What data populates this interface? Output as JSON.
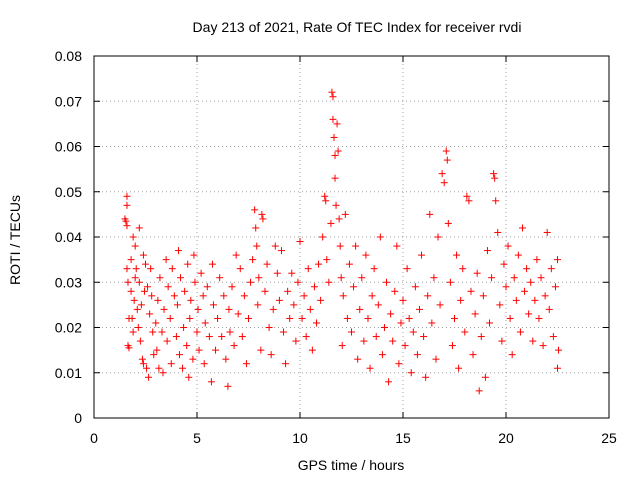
{
  "chart_data": {
    "type": "scatter",
    "title": "Day 213 of 2021, Rate Of TEC Index for receiver rvdi",
    "xlabel": "GPS time / hours",
    "ylabel": "ROTI / TECUs",
    "xlim": [
      0,
      25
    ],
    "ylim": [
      0,
      0.08
    ],
    "x_ticks": [
      "0",
      "5",
      "10",
      "15",
      "20",
      "25"
    ],
    "y_ticks": [
      "0",
      "0.01",
      "0.02",
      "0.03",
      "0.04",
      "0.05",
      "0.06",
      "0.07",
      "0.08"
    ],
    "grid": true,
    "marker": "+",
    "color": "#ff0000",
    "series": [
      {
        "points": [
          [
            1.5,
            0.044
          ],
          [
            1.55,
            0.0435
          ],
          [
            1.6,
            0.049
          ],
          [
            1.6,
            0.047
          ],
          [
            1.6,
            0.0425
          ],
          [
            1.6,
            0.033
          ],
          [
            1.65,
            0.03
          ],
          [
            1.65,
            0.016
          ],
          [
            1.7,
            0.022
          ],
          [
            1.7,
            0.0155
          ],
          [
            1.8,
            0.035
          ],
          [
            1.8,
            0.028
          ],
          [
            1.85,
            0.022
          ],
          [
            1.9,
            0.04
          ],
          [
            1.9,
            0.019
          ],
          [
            1.95,
            0.026
          ],
          [
            2.0,
            0.038
          ],
          [
            2.0,
            0.031
          ],
          [
            2.05,
            0.033
          ],
          [
            2.1,
            0.024
          ],
          [
            2.15,
            0.02
          ],
          [
            2.2,
            0.042
          ],
          [
            2.2,
            0.03
          ],
          [
            2.25,
            0.017
          ],
          [
            2.3,
            0.025
          ],
          [
            2.35,
            0.013
          ],
          [
            2.4,
            0.036
          ],
          [
            2.4,
            0.012
          ],
          [
            2.45,
            0.028
          ],
          [
            2.5,
            0.034
          ],
          [
            2.55,
            0.011
          ],
          [
            2.6,
            0.029
          ],
          [
            2.65,
            0.009
          ],
          [
            2.7,
            0.023
          ],
          [
            2.75,
            0.033
          ],
          [
            2.8,
            0.027
          ],
          [
            2.85,
            0.019
          ],
          [
            2.9,
            0.014
          ],
          [
            3.0,
            0.021
          ],
          [
            3.05,
            0.015
          ],
          [
            3.1,
            0.026
          ],
          [
            3.15,
            0.011
          ],
          [
            3.2,
            0.031
          ],
          [
            3.3,
            0.019
          ],
          [
            3.35,
            0.01
          ],
          [
            3.4,
            0.024
          ],
          [
            3.5,
            0.035
          ],
          [
            3.55,
            0.017
          ],
          [
            3.6,
            0.029
          ],
          [
            3.7,
            0.022
          ],
          [
            3.75,
            0.012
          ],
          [
            3.8,
            0.033
          ],
          [
            3.9,
            0.027
          ],
          [
            4.0,
            0.018
          ],
          [
            4.05,
            0.025
          ],
          [
            4.1,
            0.037
          ],
          [
            4.15,
            0.014
          ],
          [
            4.2,
            0.031
          ],
          [
            4.3,
            0.011
          ],
          [
            4.35,
            0.02
          ],
          [
            4.4,
            0.028
          ],
          [
            4.5,
            0.016
          ],
          [
            4.55,
            0.034
          ],
          [
            4.6,
            0.009
          ],
          [
            4.65,
            0.022
          ],
          [
            4.7,
            0.026
          ],
          [
            4.8,
            0.013
          ],
          [
            4.85,
            0.036
          ],
          [
            4.9,
            0.03
          ],
          [
            5.0,
            0.019
          ],
          [
            5.05,
            0.024
          ],
          [
            5.1,
            0.015
          ],
          [
            5.2,
            0.032
          ],
          [
            5.3,
            0.027
          ],
          [
            5.35,
            0.012
          ],
          [
            5.4,
            0.021
          ],
          [
            5.5,
            0.029
          ],
          [
            5.6,
            0.018
          ],
          [
            5.7,
            0.008
          ],
          [
            5.75,
            0.034
          ],
          [
            5.8,
            0.025
          ],
          [
            5.9,
            0.015
          ],
          [
            6.0,
            0.022
          ],
          [
            6.1,
            0.031
          ],
          [
            6.2,
            0.018
          ],
          [
            6.3,
            0.027
          ],
          [
            6.4,
            0.013
          ],
          [
            6.5,
            0.007
          ],
          [
            6.55,
            0.024
          ],
          [
            6.6,
            0.019
          ],
          [
            6.7,
            0.029
          ],
          [
            6.8,
            0.016
          ],
          [
            6.9,
            0.036
          ],
          [
            7.0,
            0.023
          ],
          [
            7.1,
            0.033
          ],
          [
            7.2,
            0.018
          ],
          [
            7.3,
            0.027
          ],
          [
            7.4,
            0.012
          ],
          [
            7.5,
            0.022
          ],
          [
            7.6,
            0.03
          ],
          [
            7.7,
            0.035
          ],
          [
            7.8,
            0.046
          ],
          [
            7.85,
            0.042
          ],
          [
            7.9,
            0.038
          ],
          [
            7.95,
            0.025
          ],
          [
            8.0,
            0.031
          ],
          [
            8.1,
            0.015
          ],
          [
            8.15,
            0.045
          ],
          [
            8.2,
            0.044
          ],
          [
            8.3,
            0.028
          ],
          [
            8.4,
            0.034
          ],
          [
            8.5,
            0.02
          ],
          [
            8.6,
            0.014
          ],
          [
            8.7,
            0.024
          ],
          [
            8.8,
            0.038
          ],
          [
            8.9,
            0.032
          ],
          [
            9.0,
            0.026
          ],
          [
            9.1,
            0.037
          ],
          [
            9.2,
            0.019
          ],
          [
            9.3,
            0.012
          ],
          [
            9.4,
            0.028
          ],
          [
            9.5,
            0.022
          ],
          [
            9.6,
            0.032
          ],
          [
            9.7,
            0.025
          ],
          [
            9.8,
            0.017
          ],
          [
            9.9,
            0.03
          ],
          [
            10.0,
            0.039
          ],
          [
            10.1,
            0.022
          ],
          [
            10.2,
            0.027
          ],
          [
            10.3,
            0.018
          ],
          [
            10.4,
            0.033
          ],
          [
            10.5,
            0.024
          ],
          [
            10.6,
            0.015
          ],
          [
            10.7,
            0.029
          ],
          [
            10.8,
            0.021
          ],
          [
            10.9,
            0.034
          ],
          [
            11.0,
            0.026
          ],
          [
            11.1,
            0.04
          ],
          [
            11.2,
            0.049
          ],
          [
            11.25,
            0.048
          ],
          [
            11.3,
            0.035
          ],
          [
            11.4,
            0.03
          ],
          [
            11.5,
            0.043
          ],
          [
            11.55,
            0.072
          ],
          [
            11.6,
            0.071
          ],
          [
            11.6,
            0.066
          ],
          [
            11.65,
            0.062
          ],
          [
            11.7,
            0.058
          ],
          [
            11.7,
            0.053
          ],
          [
            11.75,
            0.047
          ],
          [
            11.8,
            0.065
          ],
          [
            11.85,
            0.059
          ],
          [
            11.9,
            0.044
          ],
          [
            11.95,
            0.038
          ],
          [
            12.0,
            0.031
          ],
          [
            12.05,
            0.016
          ],
          [
            12.1,
            0.027
          ],
          [
            12.2,
            0.045
          ],
          [
            12.3,
            0.022
          ],
          [
            12.4,
            0.034
          ],
          [
            12.5,
            0.019
          ],
          [
            12.6,
            0.029
          ],
          [
            12.7,
            0.038
          ],
          [
            12.8,
            0.013
          ],
          [
            12.9,
            0.024
          ],
          [
            13.0,
            0.031
          ],
          [
            13.1,
            0.017
          ],
          [
            13.2,
            0.036
          ],
          [
            13.3,
            0.022
          ],
          [
            13.4,
            0.011
          ],
          [
            13.5,
            0.027
          ],
          [
            13.6,
            0.033
          ],
          [
            13.7,
            0.018
          ],
          [
            13.8,
            0.025
          ],
          [
            13.9,
            0.04
          ],
          [
            14.0,
            0.014
          ],
          [
            14.1,
            0.02
          ],
          [
            14.2,
            0.03
          ],
          [
            14.3,
            0.008
          ],
          [
            14.4,
            0.023
          ],
          [
            14.5,
            0.017
          ],
          [
            14.6,
            0.028
          ],
          [
            14.7,
            0.038
          ],
          [
            14.8,
            0.012
          ],
          [
            14.9,
            0.021
          ],
          [
            15.0,
            0.026
          ],
          [
            15.1,
            0.016
          ],
          [
            15.2,
            0.033
          ],
          [
            15.3,
            0.022
          ],
          [
            15.4,
            0.01
          ],
          [
            15.5,
            0.019
          ],
          [
            15.6,
            0.029
          ],
          [
            15.7,
            0.014
          ],
          [
            15.8,
            0.024
          ],
          [
            15.9,
            0.036
          ],
          [
            16.0,
            0.018
          ],
          [
            16.1,
            0.009
          ],
          [
            16.2,
            0.027
          ],
          [
            16.3,
            0.045
          ],
          [
            16.4,
            0.021
          ],
          [
            16.5,
            0.031
          ],
          [
            16.6,
            0.013
          ],
          [
            16.7,
            0.04
          ],
          [
            16.8,
            0.025
          ],
          [
            16.9,
            0.054
          ],
          [
            17.0,
            0.052
          ],
          [
            17.1,
            0.059
          ],
          [
            17.15,
            0.057
          ],
          [
            17.2,
            0.043
          ],
          [
            17.3,
            0.03
          ],
          [
            17.4,
            0.016
          ],
          [
            17.5,
            0.022
          ],
          [
            17.6,
            0.036
          ],
          [
            17.7,
            0.011
          ],
          [
            17.8,
            0.026
          ],
          [
            17.9,
            0.033
          ],
          [
            18.0,
            0.019
          ],
          [
            18.1,
            0.049
          ],
          [
            18.2,
            0.048
          ],
          [
            18.3,
            0.028
          ],
          [
            18.4,
            0.014
          ],
          [
            18.5,
            0.023
          ],
          [
            18.6,
            0.032
          ],
          [
            18.7,
            0.006
          ],
          [
            18.8,
            0.018
          ],
          [
            18.9,
            0.027
          ],
          [
            19.0,
            0.009
          ],
          [
            19.1,
            0.037
          ],
          [
            19.2,
            0.021
          ],
          [
            19.3,
            0.031
          ],
          [
            19.4,
            0.054
          ],
          [
            19.45,
            0.053
          ],
          [
            19.5,
            0.048
          ],
          [
            19.6,
            0.041
          ],
          [
            19.7,
            0.025
          ],
          [
            19.8,
            0.017
          ],
          [
            19.9,
            0.034
          ],
          [
            20.0,
            0.029
          ],
          [
            20.1,
            0.038
          ],
          [
            20.2,
            0.022
          ],
          [
            20.3,
            0.014
          ],
          [
            20.4,
            0.031
          ],
          [
            20.5,
            0.026
          ],
          [
            20.6,
            0.036
          ],
          [
            20.7,
            0.019
          ],
          [
            20.8,
            0.042
          ],
          [
            20.9,
            0.028
          ],
          [
            21.0,
            0.033
          ],
          [
            21.1,
            0.023
          ],
          [
            21.2,
            0.03
          ],
          [
            21.3,
            0.017
          ],
          [
            21.4,
            0.026
          ],
          [
            21.5,
            0.035
          ],
          [
            21.6,
            0.022
          ],
          [
            21.7,
            0.031
          ],
          [
            21.8,
            0.016
          ],
          [
            21.9,
            0.027
          ],
          [
            22.0,
            0.041
          ],
          [
            22.1,
            0.024
          ],
          [
            22.2,
            0.033
          ],
          [
            22.3,
            0.018
          ],
          [
            22.4,
            0.029
          ],
          [
            22.5,
            0.011
          ],
          [
            22.5,
            0.035
          ],
          [
            22.55,
            0.015
          ]
        ]
      }
    ]
  }
}
